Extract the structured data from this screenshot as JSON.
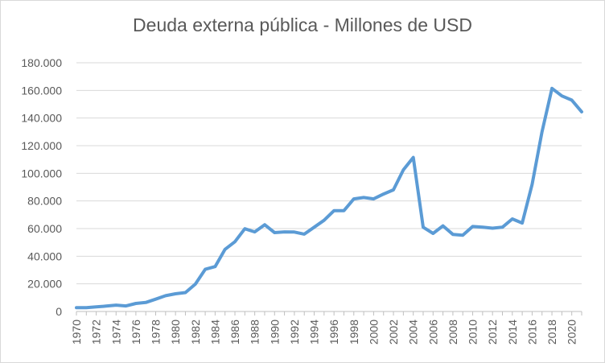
{
  "chart_data": {
    "type": "line",
    "title": "Deuda externa pública - Millones de USD",
    "xlabel": "",
    "ylabel": "",
    "ylim": [
      0,
      180000
    ],
    "y_ticks": [
      "0",
      "20.000",
      "40.000",
      "60.000",
      "80.000",
      "100.000",
      "120.000",
      "140.000",
      "160.000",
      "180.000"
    ],
    "x_ticks": [
      "1970",
      "1972",
      "1974",
      "1976",
      "1978",
      "1980",
      "1982",
      "1984",
      "1986",
      "1988",
      "1990",
      "1992",
      "1994",
      "1996",
      "1998",
      "2000",
      "2002",
      "2004",
      "2006",
      "2008",
      "2010",
      "2012",
      "2014",
      "2016",
      "2018",
      "2020"
    ],
    "grid": true,
    "legend": "none",
    "series": [
      {
        "color": "#5b9bd5",
        "x": [
          1970,
          1971,
          1972,
          1973,
          1974,
          1975,
          1976,
          1977,
          1978,
          1979,
          1980,
          1981,
          1982,
          1983,
          1984,
          1985,
          1986,
          1987,
          1988,
          1989,
          1990,
          1991,
          1992,
          1993,
          1994,
          1995,
          1996,
          1997,
          1998,
          1999,
          2000,
          2001,
          2002,
          2003,
          2004,
          2005,
          2006,
          2007,
          2008,
          2009,
          2010,
          2011,
          2012,
          2013,
          2014,
          2015,
          2016,
          2017,
          2018,
          2019,
          2020,
          2021
        ],
        "values": [
          2800,
          2800,
          3300,
          3900,
          4600,
          4000,
          5800,
          6500,
          8900,
          11400,
          12800,
          13700,
          19800,
          30500,
          32500,
          45000,
          50500,
          59900,
          57600,
          62800,
          57100,
          57600,
          57500,
          56000,
          61000,
          66000,
          73000,
          73000,
          81500,
          82500,
          81500,
          85000,
          88000,
          102500,
          111500,
          61000,
          56500,
          62000,
          55800,
          55200,
          61500,
          61000,
          60300,
          61000,
          67000,
          64000,
          92000,
          130000,
          161500,
          156000,
          153000,
          144500
        ]
      }
    ]
  }
}
